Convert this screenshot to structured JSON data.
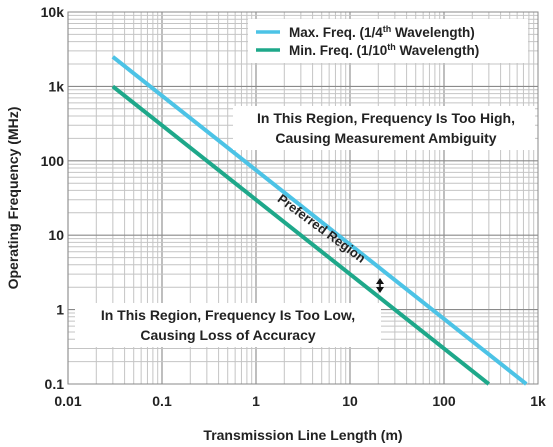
{
  "chart_data": {
    "type": "line",
    "xlabel": "Transmission Line Length (m)",
    "ylabel": "Operating Frequency (MHz)",
    "x_scale": "log",
    "y_scale": "log",
    "xlim": [
      0.01,
      1000
    ],
    "ylim": [
      0.1,
      10000
    ],
    "x_ticks": [
      0.01,
      0.1,
      1,
      10,
      100,
      1000
    ],
    "x_tick_labels": [
      "0.01",
      "0.1",
      "1",
      "10",
      "100",
      "1k"
    ],
    "y_ticks": [
      0.1,
      1,
      10,
      100,
      1000,
      10000
    ],
    "y_tick_labels": [
      "0.1",
      "1",
      "10",
      "100",
      "1k",
      "10k"
    ],
    "grid": true,
    "legend_position": "top-right",
    "series": [
      {
        "name_prefix": "Max. Freq. (1/4",
        "name_sup": "th",
        "name_suffix": " Wavelength)",
        "color": "#4cc3e6",
        "x": [
          0.03,
          750
        ],
        "y": [
          2500,
          0.1
        ]
      },
      {
        "name_prefix": "Min. Freq. (1/10",
        "name_sup": "th",
        "name_suffix": " Wavelength)",
        "color": "#1ea88a",
        "x": [
          0.03,
          300
        ],
        "y": [
          1000,
          0.1
        ]
      }
    ],
    "annotations": {
      "high_region": [
        "In This Region, Frequency Is Too High,",
        "Causing Measurement Ambiguity"
      ],
      "low_region": [
        "In This Region, Frequency Is Too Low,",
        "Causing Loss of Accuracy"
      ],
      "preferred_region": "Preferred Region"
    }
  }
}
